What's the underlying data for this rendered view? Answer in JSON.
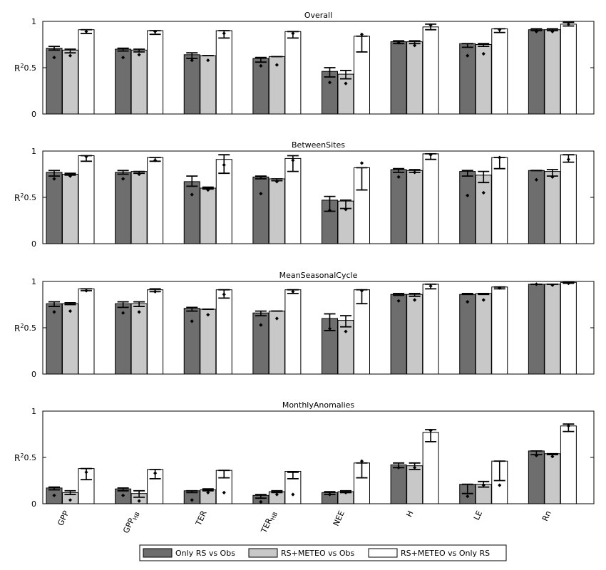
{
  "chart_data": {
    "type": "bar",
    "ylabel_base": "R",
    "ylabel_sup": "2",
    "ylim": [
      0,
      1
    ],
    "yticks": [
      "0",
      "0.5",
      "1"
    ],
    "categories": [
      {
        "main": "GPP",
        "sub": ""
      },
      {
        "main": "GPP",
        "sub": "HB"
      },
      {
        "main": "TER",
        "sub": ""
      },
      {
        "main": "TER",
        "sub": "HB"
      },
      {
        "main": "NEE",
        "sub": ""
      },
      {
        "main": "H",
        "sub": ""
      },
      {
        "main": "LE",
        "sub": ""
      },
      {
        "main": "Rn",
        "sub": ""
      }
    ],
    "legend": {
      "placement": "bottom-center",
      "entries": [
        {
          "label": "Only RS vs Obs",
          "color": "#6e6e6e"
        },
        {
          "label": "RS+METEO vs Obs",
          "color": "#c8c8c8"
        },
        {
          "label": "RS+METEO vs Only RS",
          "color": "#ffffff"
        }
      ]
    },
    "panels": [
      {
        "title": "Overall",
        "series": [
          {
            "values": [
              0.71,
              0.7,
              0.64,
              0.6,
              0.46,
              0.78,
              0.76,
              0.91
            ],
            "err_low": [
              0.69,
              0.68,
              0.6,
              0.56,
              0.4,
              0.76,
              0.72,
              0.9
            ],
            "err_high": [
              0.73,
              0.71,
              0.66,
              0.61,
              0.5,
              0.79,
              0.76,
              0.92
            ],
            "points": [
              0.61,
              0.61,
              0.58,
              0.52,
              0.34,
              0.77,
              0.63,
              0.89
            ]
          },
          {
            "values": [
              0.69,
              0.69,
              0.63,
              0.62,
              0.43,
              0.78,
              0.75,
              0.91
            ],
            "err_low": [
              0.66,
              0.67,
              0.63,
              0.62,
              0.38,
              0.76,
              0.73,
              0.9
            ],
            "err_high": [
              0.7,
              0.7,
              0.63,
              0.62,
              0.47,
              0.79,
              0.76,
              0.92
            ],
            "points": [
              0.63,
              0.64,
              0.58,
              0.53,
              0.33,
              0.74,
              0.65,
              0.89
            ]
          },
          {
            "values": [
              0.91,
              0.9,
              0.9,
              0.89,
              0.84,
              0.94,
              0.92,
              0.97
            ],
            "err_low": [
              0.87,
              0.86,
              0.82,
              0.82,
              0.67,
              0.91,
              0.88,
              0.95
            ],
            "err_high": [
              0.91,
              0.9,
              0.9,
              0.89,
              0.84,
              0.97,
              0.92,
              0.99
            ],
            "points": [
              0.89,
              0.89,
              0.87,
              0.87,
              0.86,
              0.96,
              0.91,
              0.97
            ]
          }
        ]
      },
      {
        "title": "BetweenSites",
        "series": [
          {
            "values": [
              0.77,
              0.77,
              0.67,
              0.72,
              0.47,
              0.8,
              0.78,
              0.79
            ],
            "err_low": [
              0.73,
              0.75,
              0.62,
              0.7,
              0.35,
              0.77,
              0.73,
              0.79
            ],
            "err_high": [
              0.79,
              0.79,
              0.73,
              0.73,
              0.51,
              0.81,
              0.79,
              0.79
            ],
            "points": [
              0.7,
              0.7,
              0.53,
              0.54,
              0.36,
              0.72,
              0.52,
              0.69
            ]
          },
          {
            "values": [
              0.75,
              0.78,
              0.6,
              0.7,
              0.46,
              0.79,
              0.74,
              0.78
            ],
            "err_low": [
              0.74,
              0.76,
              0.59,
              0.68,
              0.38,
              0.77,
              0.66,
              0.73
            ],
            "err_high": [
              0.76,
              0.78,
              0.61,
              0.7,
              0.47,
              0.8,
              0.78,
              0.8
            ],
            "points": [
              0.73,
              0.75,
              0.58,
              0.67,
              0.37,
              0.77,
              0.55,
              0.72
            ]
          },
          {
            "values": [
              0.95,
              0.93,
              0.91,
              0.92,
              0.82,
              0.97,
              0.93,
              0.96
            ],
            "err_low": [
              0.89,
              0.89,
              0.76,
              0.78,
              0.58,
              0.91,
              0.81,
              0.88
            ],
            "err_high": [
              0.95,
              0.93,
              0.96,
              0.95,
              0.82,
              0.97,
              0.93,
              0.96
            ],
            "points": [
              0.94,
              0.9,
              0.85,
              0.9,
              0.87,
              0.96,
              0.93,
              0.91
            ]
          }
        ]
      },
      {
        "title": "MeanSeasonalCycle",
        "series": [
          {
            "values": [
              0.76,
              0.76,
              0.71,
              0.66,
              0.6,
              0.86,
              0.86,
              0.97
            ],
            "err_low": [
              0.73,
              0.72,
              0.68,
              0.63,
              0.47,
              0.85,
              0.86,
              0.97
            ],
            "err_high": [
              0.78,
              0.78,
              0.72,
              0.68,
              0.65,
              0.87,
              0.87,
              0.97
            ],
            "points": [
              0.67,
              0.66,
              0.57,
              0.53,
              0.49,
              0.79,
              0.78,
              0.97
            ]
          },
          {
            "values": [
              0.76,
              0.76,
              0.7,
              0.68,
              0.58,
              0.86,
              0.87,
              0.97
            ],
            "err_low": [
              0.75,
              0.73,
              0.7,
              0.68,
              0.51,
              0.84,
              0.86,
              0.97
            ],
            "err_high": [
              0.77,
              0.78,
              0.7,
              0.68,
              0.63,
              0.87,
              0.87,
              0.97
            ],
            "points": [
              0.68,
              0.67,
              0.64,
              0.6,
              0.46,
              0.8,
              0.8,
              0.96
            ]
          },
          {
            "values": [
              0.92,
              0.91,
              0.91,
              0.91,
              0.91,
              0.97,
              0.94,
              0.99
            ],
            "err_low": [
              0.9,
              0.89,
              0.82,
              0.87,
              0.76,
              0.92,
              0.92,
              0.98
            ],
            "err_high": [
              0.92,
              0.92,
              0.91,
              0.91,
              0.91,
              0.97,
              0.94,
              0.99
            ],
            "points": [
              0.9,
              0.89,
              0.86,
              0.89,
              0.9,
              0.95,
              0.93,
              0.98
            ]
          }
        ]
      },
      {
        "title": "MonthlyAnomalies",
        "series": [
          {
            "values": [
              0.17,
              0.16,
              0.14,
              0.09,
              0.12,
              0.42,
              0.21,
              0.57
            ],
            "err_low": [
              0.15,
              0.14,
              0.12,
              0.06,
              0.1,
              0.39,
              0.11,
              0.53
            ],
            "err_high": [
              0.18,
              0.17,
              0.14,
              0.1,
              0.13,
              0.44,
              0.21,
              0.57
            ],
            "points": [
              0.09,
              0.09,
              0.04,
              0.02,
              0.1,
              0.39,
              0.08,
              0.52
            ]
          },
          {
            "values": [
              0.12,
              0.11,
              0.15,
              0.13,
              0.13,
              0.41,
              0.21,
              0.54
            ],
            "err_low": [
              0.1,
              0.07,
              0.14,
              0.12,
              0.12,
              0.37,
              0.18,
              0.53
            ],
            "err_high": [
              0.14,
              0.14,
              0.16,
              0.14,
              0.14,
              0.44,
              0.24,
              0.54
            ],
            "points": [
              0.04,
              0.03,
              0.12,
              0.1,
              0.12,
              0.39,
              0.2,
              0.51
            ]
          },
          {
            "values": [
              0.38,
              0.37,
              0.36,
              0.35,
              0.44,
              0.77,
              0.46,
              0.84
            ],
            "err_low": [
              0.26,
              0.27,
              0.28,
              0.27,
              0.28,
              0.67,
              0.25,
              0.78
            ],
            "err_high": [
              0.38,
              0.37,
              0.36,
              0.34,
              0.44,
              0.8,
              0.46,
              0.86
            ],
            "points": [
              0.34,
              0.33,
              0.12,
              0.1,
              0.46,
              0.79,
              0.2,
              0.84
            ]
          }
        ]
      }
    ]
  }
}
